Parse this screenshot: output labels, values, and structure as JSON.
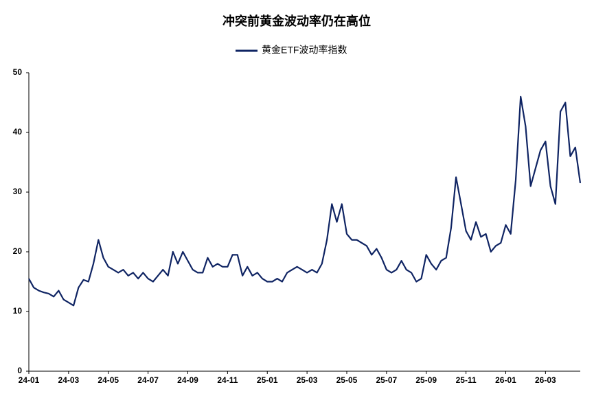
{
  "chart_data": {
    "type": "line",
    "title": "冲突前黄金波动率仍在高位",
    "categories": [
      "24-01",
      null,
      null,
      null,
      null,
      null,
      null,
      null,
      "24-03",
      null,
      null,
      null,
      null,
      null,
      null,
      null,
      "24-05",
      null,
      null,
      null,
      null,
      null,
      null,
      null,
      "24-07",
      null,
      null,
      null,
      null,
      null,
      null,
      null,
      "24-09",
      null,
      null,
      null,
      null,
      null,
      null,
      null,
      "24-11",
      null,
      null,
      null,
      null,
      null,
      null,
      null,
      "25-01",
      null,
      null,
      null,
      null,
      null,
      null,
      null,
      "25-03",
      null,
      null,
      null,
      null,
      null,
      null,
      null,
      "25-05",
      null,
      null,
      null,
      null,
      null,
      null,
      null,
      "25-07",
      null,
      null,
      null,
      null,
      null,
      null,
      null,
      "25-09",
      null,
      null,
      null,
      null,
      null,
      null,
      null,
      "25-11",
      null,
      null,
      null,
      null,
      null,
      null,
      null,
      "26-01",
      null,
      null,
      null,
      null,
      null,
      null,
      null,
      "26-03",
      null,
      null,
      null,
      null,
      null,
      null,
      null
    ],
    "series": [
      {
        "name": "黄金ETF波动率指数",
        "color": "#0f2463",
        "values": [
          15.5,
          14,
          13.5,
          13.2,
          13,
          12.5,
          13.5,
          12,
          11.5,
          11,
          14,
          15.3,
          15,
          18,
          22,
          19,
          17.5,
          17,
          16.5,
          17,
          16,
          16.5,
          15.5,
          16.5,
          15.5,
          15,
          16,
          17,
          16,
          20,
          18,
          20,
          18.5,
          17,
          16.5,
          16.5,
          19,
          17.5,
          18,
          17.5,
          17.5,
          19.5,
          19.5,
          16,
          17.5,
          16,
          16.5,
          15.5,
          15,
          15,
          15.5,
          15,
          16.5,
          17,
          17.5,
          17,
          16.5,
          17,
          16.5,
          18,
          22,
          28,
          25,
          28,
          23,
          22,
          22,
          21.5,
          21,
          19.5,
          20.5,
          19,
          17,
          16.5,
          17,
          18.5,
          17,
          16.5,
          15,
          15.5,
          19.5,
          18,
          17,
          18.5,
          19,
          24,
          32.5,
          28,
          23.5,
          22,
          25,
          22.5,
          23,
          20,
          21,
          21.5,
          24.5,
          23,
          32,
          46,
          41,
          31,
          34,
          37,
          38.5,
          31,
          28,
          43.5,
          45,
          36,
          37.5,
          31.5
        ]
      }
    ],
    "ylim": [
      0,
      50
    ],
    "yticks": [
      0,
      10,
      20,
      30,
      40,
      50
    ],
    "grid": false,
    "legend": "top"
  }
}
